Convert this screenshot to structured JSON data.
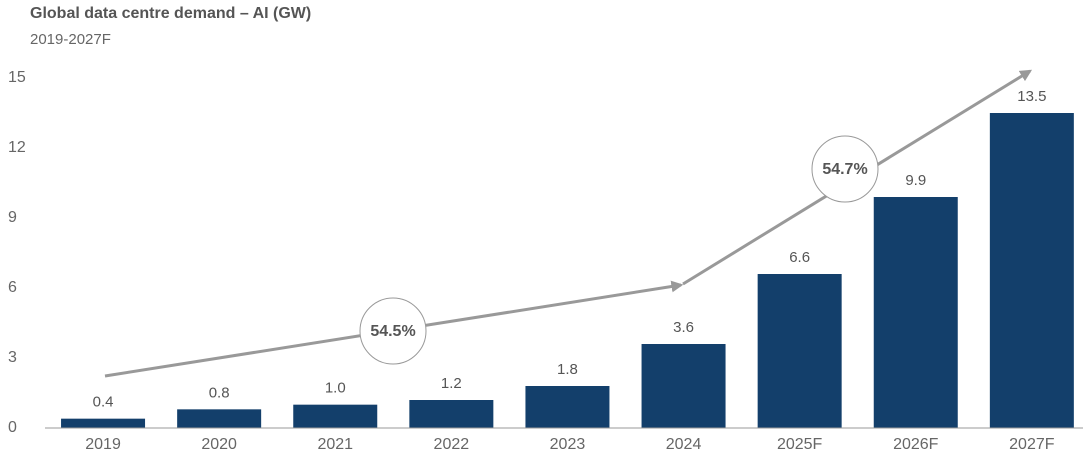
{
  "chart_data": {
    "type": "bar",
    "title": "Global data centre demand – AI (GW)",
    "subtitle": "2019-2027F",
    "categories": [
      "2019",
      "2020",
      "2021",
      "2022",
      "2023",
      "2024",
      "2025F",
      "2026F",
      "2027F"
    ],
    "values": [
      0.4,
      0.8,
      1.0,
      1.2,
      1.8,
      3.6,
      6.6,
      9.9,
      13.5
    ],
    "value_labels": [
      "0.4",
      "0.8",
      "1.0",
      "1.2",
      "1.8",
      "3.6",
      "6.6",
      "9.9",
      "13.5"
    ],
    "color": "#133f6b",
    "ylim": [
      0,
      15
    ],
    "yticks": [
      0,
      3,
      6,
      9,
      12,
      15
    ],
    "grid": false,
    "annotations": [
      "54.5%",
      "54.7%"
    ]
  }
}
